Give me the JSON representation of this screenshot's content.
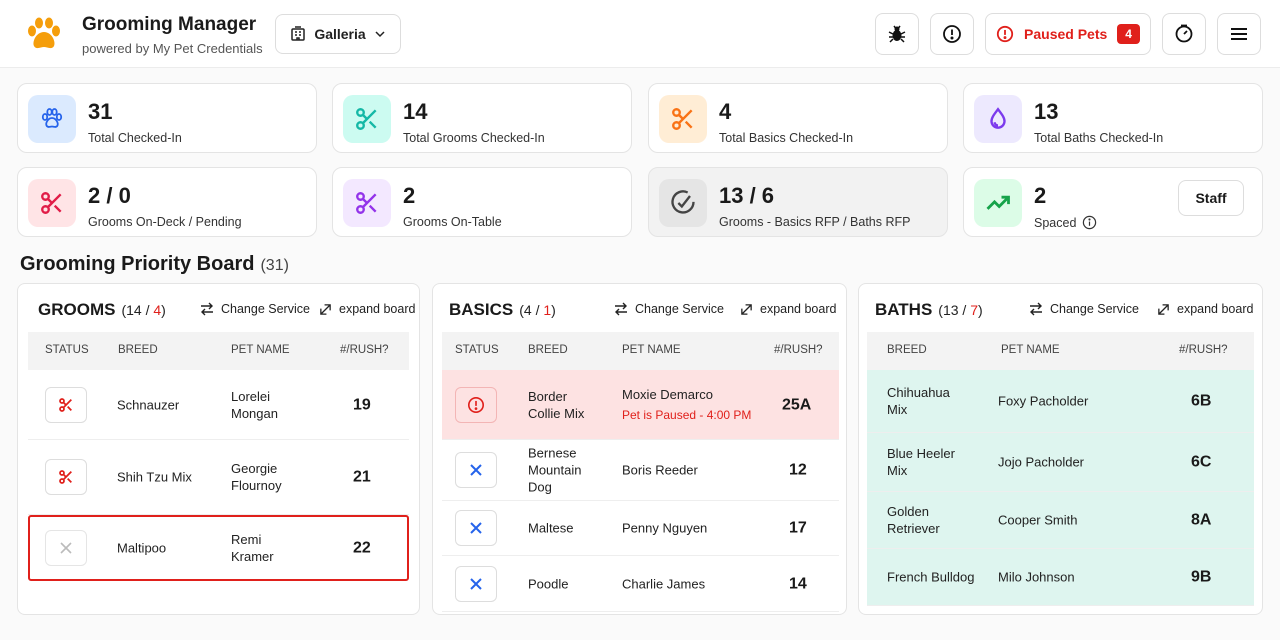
{
  "header": {
    "title": "Grooming Manager",
    "subtitle": "powered by My Pet Credentials",
    "location": "Galleria",
    "paused_label": "Paused Pets",
    "paused_count": "4"
  },
  "stats": [
    {
      "value": "31",
      "label": "Total Checked-In",
      "icon": "paw-icon",
      "color": "#2563eb"
    },
    {
      "value": "14",
      "label": "Total Grooms Checked-In",
      "icon": "scissors-icon",
      "color": "#14b8a6"
    },
    {
      "value": "4",
      "label": "Total Basics Checked-In",
      "icon": "scissors-icon",
      "color": "#f97316"
    },
    {
      "value": "13",
      "label": "Total Baths Checked-In",
      "icon": "water-drop-icon",
      "color": "#7c3aed"
    },
    {
      "value": "2 / 0",
      "label": "Grooms On-Deck / Pending",
      "icon": "scissors-icon",
      "color": "#e11d48"
    },
    {
      "value": "2",
      "label": "Grooms On-Table",
      "icon": "scissors-icon",
      "color": "#9333ea"
    },
    {
      "value": "13 / 6",
      "label": "Grooms - Basics RFP / Baths RFP",
      "icon": "check-circle-icon",
      "color": "#444444"
    },
    {
      "value": "2",
      "label": "Spaced",
      "icon": "trending-up-icon",
      "color": "#16a34a",
      "button": "Staff"
    }
  ],
  "board": {
    "title": "Grooming Priority Board",
    "count": "(31)"
  },
  "actions": {
    "change_service": "Change Service",
    "expand_board": "expand board"
  },
  "grooms": {
    "title": "GROOMS",
    "count_total": "14",
    "count_sep": " / ",
    "count_red": "4",
    "headers": [
      "STATUS",
      "BREED",
      "PET NAME",
      "#/RUSH?"
    ],
    "rows": [
      {
        "breed": "Schnauzer",
        "pet": "Lorelei Mongan",
        "num": "19"
      },
      {
        "breed": "Shih Tzu Mix",
        "pet": "Georgie Flournoy",
        "num": "21"
      },
      {
        "breed": "Maltipoo",
        "pet": "Remi Kramer",
        "num": "22"
      }
    ]
  },
  "basics": {
    "title": "BASICS",
    "count_total": "4",
    "count_sep": " / ",
    "count_red": "1",
    "headers": [
      "STATUS",
      "BREED",
      "PET NAME",
      "#/RUSH?"
    ],
    "rows": [
      {
        "breed": "Border Collie Mix",
        "pet": "Moxie Demarco",
        "note": "Pet is Paused - 4:00 PM",
        "num": "25A"
      },
      {
        "breed": "Bernese Mountain Dog",
        "pet": "Boris Reeder",
        "num": "12"
      },
      {
        "breed": "Maltese",
        "pet": "Penny Nguyen",
        "num": "17"
      },
      {
        "breed": "Poodle",
        "pet": "Charlie James",
        "num": "14"
      }
    ]
  },
  "baths": {
    "title": "BATHS",
    "count_total": "13",
    "count_sep": " / ",
    "count_red": "7",
    "headers": [
      "BREED",
      "PET NAME",
      "#/RUSH?"
    ],
    "rows": [
      {
        "breed": "Chihuahua Mix",
        "pet": "Foxy Pacholder",
        "num": "6B"
      },
      {
        "breed": "Blue Heeler Mix",
        "pet": "Jojo Pacholder",
        "num": "6C"
      },
      {
        "breed": "Golden Retriever",
        "pet": "Cooper Smith",
        "num": "8A"
      },
      {
        "breed": "French Bulldog",
        "pet": "Milo Johnson",
        "num": "9B"
      }
    ]
  },
  "colors": {
    "accent_red": "#e0201b",
    "paused_row": "#fde2e2",
    "bath_row": "#def5ef",
    "selected_border": "#e0201b",
    "blue_icon": "#2563eb"
  }
}
